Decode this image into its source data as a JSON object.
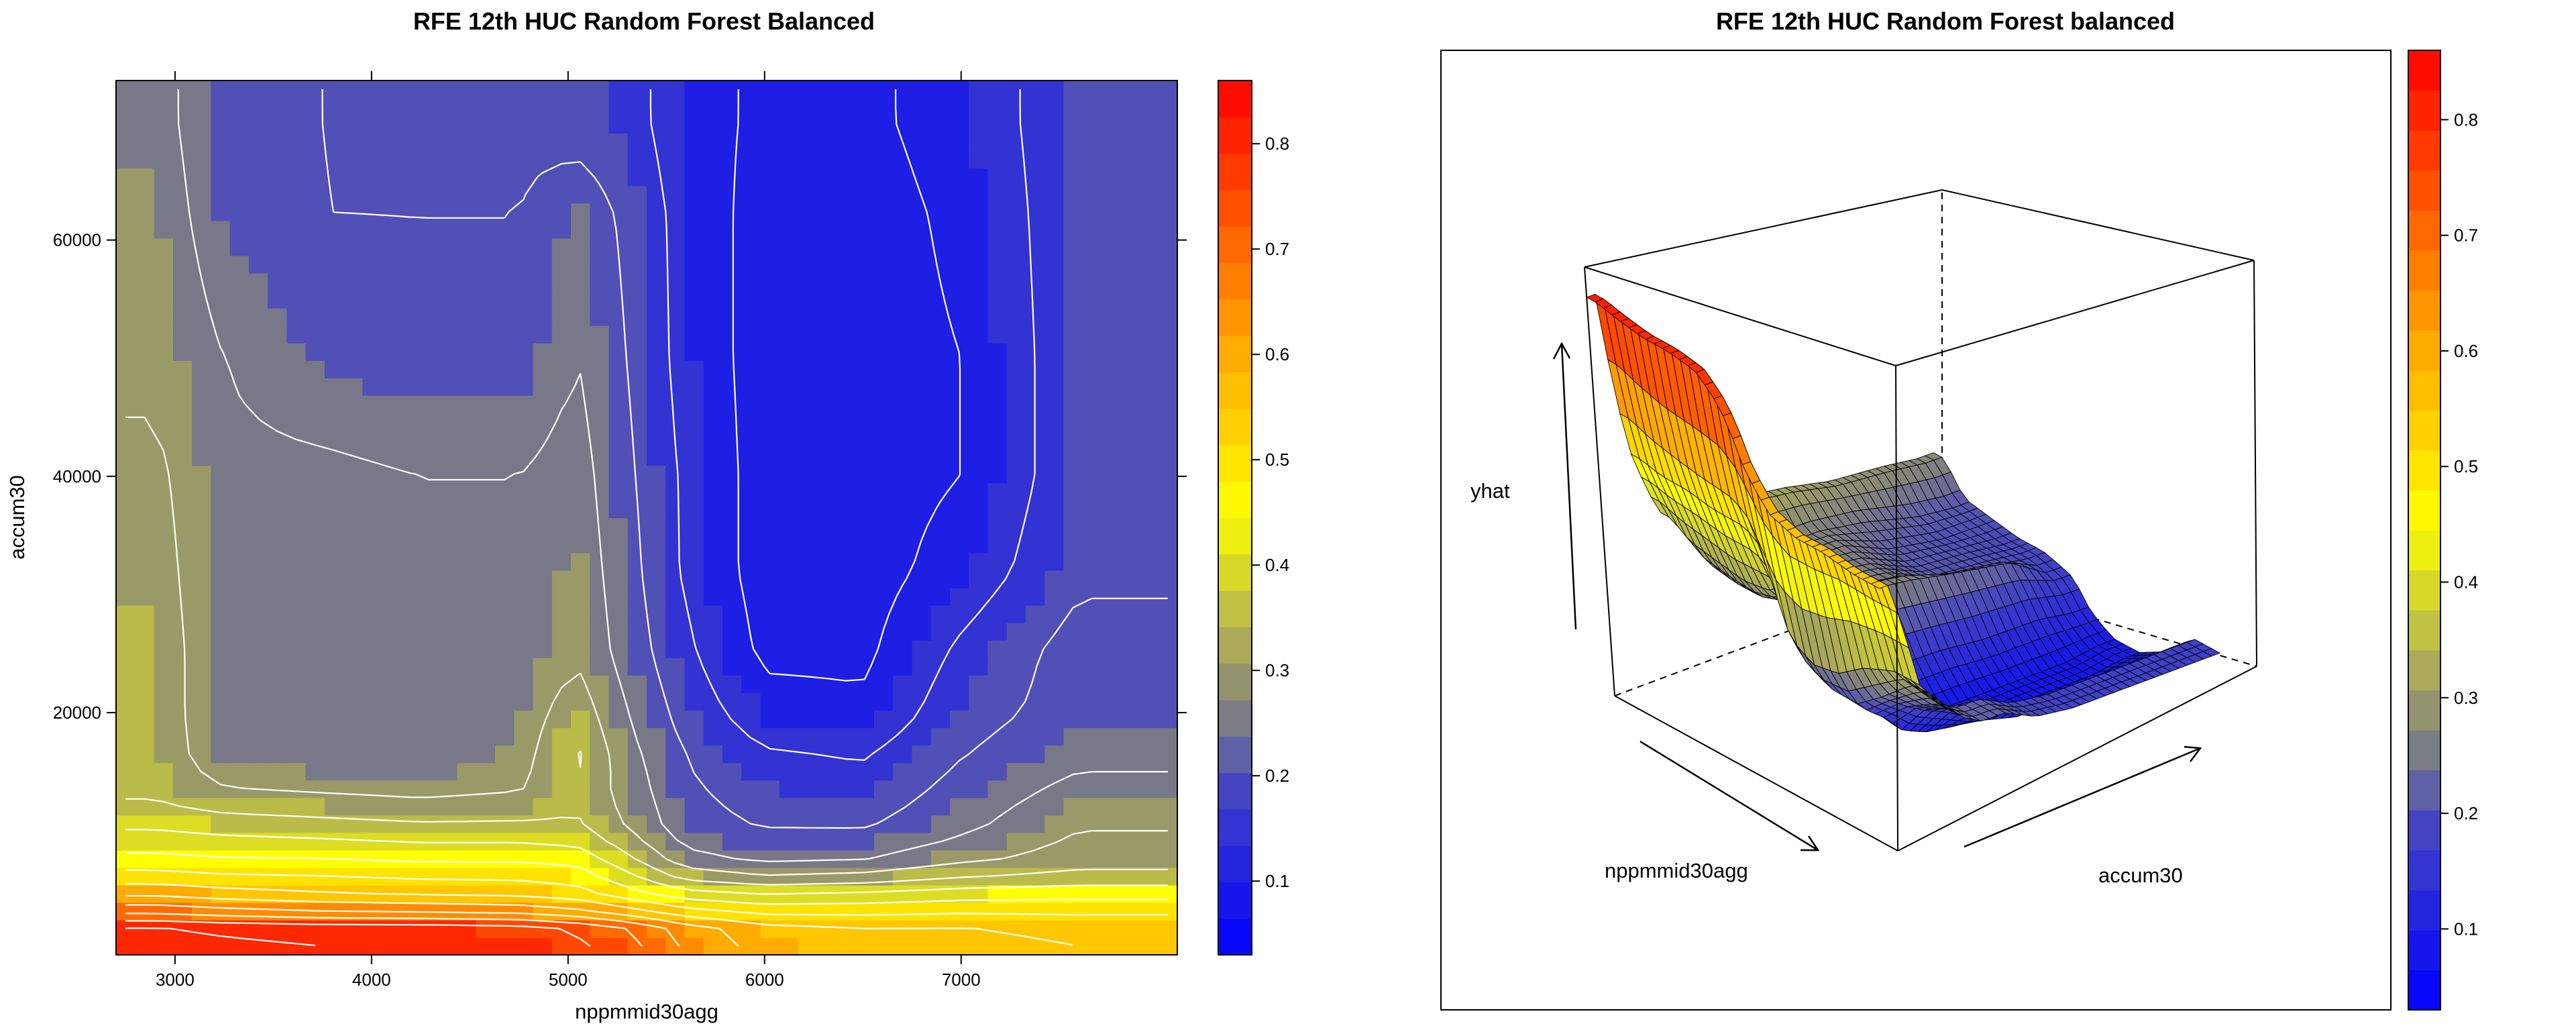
{
  "chart_data": [
    {
      "type": "heatmap",
      "title": "RFE 12th HUC Random Forest Balanced",
      "xlabel": "nppmmid30agg",
      "ylabel": "accum30",
      "xlim": [
        2700,
        8100
      ],
      "ylim": [
        -500,
        73500
      ],
      "x_ticks": [
        "3000",
        "4000",
        "5000",
        "6000",
        "7000"
      ],
      "y_ticks": [
        "20000",
        "40000",
        "60000"
      ],
      "x_tick_values": [
        3000,
        4000,
        5000,
        6000,
        7000
      ],
      "y_tick_values": [
        20000,
        40000,
        60000
      ],
      "colorbar_ticks": [
        "0.1",
        "0.2",
        "0.3",
        "0.4",
        "0.5",
        "0.6",
        "0.7",
        "0.8"
      ],
      "colorbar_tick_values": [
        0.1,
        0.2,
        0.3,
        0.4,
        0.5,
        0.6,
        0.7,
        0.8
      ],
      "colorbar_range": [
        0.03,
        0.86
      ],
      "contours": true,
      "x": [
        2900,
        3250,
        3750,
        4250,
        4750,
        5050,
        5300,
        5600,
        6000,
        6500,
        7000,
        7600
      ],
      "y": [
        1500,
        4000,
        7000,
        10000,
        13000,
        16000,
        20000,
        25000,
        32000,
        40000,
        50000,
        62000,
        70000
      ],
      "z": [
        [
          0.82,
          0.81,
          0.8,
          0.8,
          0.79,
          0.76,
          0.72,
          0.64,
          0.58,
          0.56,
          0.56,
          0.55
        ],
        [
          0.62,
          0.6,
          0.58,
          0.57,
          0.56,
          0.54,
          0.5,
          0.46,
          0.44,
          0.45,
          0.46,
          0.46
        ],
        [
          0.48,
          0.47,
          0.47,
          0.46,
          0.46,
          0.45,
          0.38,
          0.28,
          0.25,
          0.26,
          0.3,
          0.33
        ],
        [
          0.4,
          0.39,
          0.38,
          0.37,
          0.37,
          0.36,
          0.3,
          0.22,
          0.2,
          0.2,
          0.24,
          0.3
        ],
        [
          0.34,
          0.31,
          0.3,
          0.29,
          0.3,
          0.34,
          0.28,
          0.21,
          0.18,
          0.17,
          0.22,
          0.27
        ],
        [
          0.33,
          0.27,
          0.26,
          0.26,
          0.28,
          0.36,
          0.27,
          0.2,
          0.16,
          0.15,
          0.2,
          0.24
        ],
        [
          0.33,
          0.26,
          0.26,
          0.26,
          0.27,
          0.33,
          0.25,
          0.18,
          0.12,
          0.11,
          0.18,
          0.22
        ],
        [
          0.33,
          0.26,
          0.26,
          0.26,
          0.26,
          0.29,
          0.23,
          0.16,
          0.09,
          0.09,
          0.16,
          0.22
        ],
        [
          0.32,
          0.26,
          0.26,
          0.26,
          0.26,
          0.28,
          0.22,
          0.14,
          0.08,
          0.08,
          0.12,
          0.19
        ],
        [
          0.31,
          0.26,
          0.26,
          0.25,
          0.25,
          0.27,
          0.21,
          0.14,
          0.08,
          0.08,
          0.1,
          0.18
        ],
        [
          0.29,
          0.25,
          0.22,
          0.21,
          0.21,
          0.25,
          0.2,
          0.13,
          0.08,
          0.08,
          0.1,
          0.18
        ],
        [
          0.28,
          0.22,
          0.2,
          0.2,
          0.2,
          0.23,
          0.19,
          0.13,
          0.08,
          0.08,
          0.11,
          0.18
        ],
        [
          0.27,
          0.21,
          0.2,
          0.19,
          0.19,
          0.18,
          0.17,
          0.12,
          0.09,
          0.09,
          0.12,
          0.18
        ]
      ]
    },
    {
      "type": "surface",
      "title": "RFE 12th HUC Random Forest balanced",
      "xlabel": "nppmmid30agg",
      "ylabel": "accum30",
      "zlabel": "yhat",
      "colorbar_ticks": [
        "0.1",
        "0.2",
        "0.3",
        "0.4",
        "0.5",
        "0.6",
        "0.7",
        "0.8"
      ],
      "colorbar_tick_values": [
        0.1,
        0.2,
        0.3,
        0.4,
        0.5,
        0.6,
        0.7,
        0.8
      ],
      "colorbar_range": [
        0.03,
        0.86
      ]
    }
  ]
}
